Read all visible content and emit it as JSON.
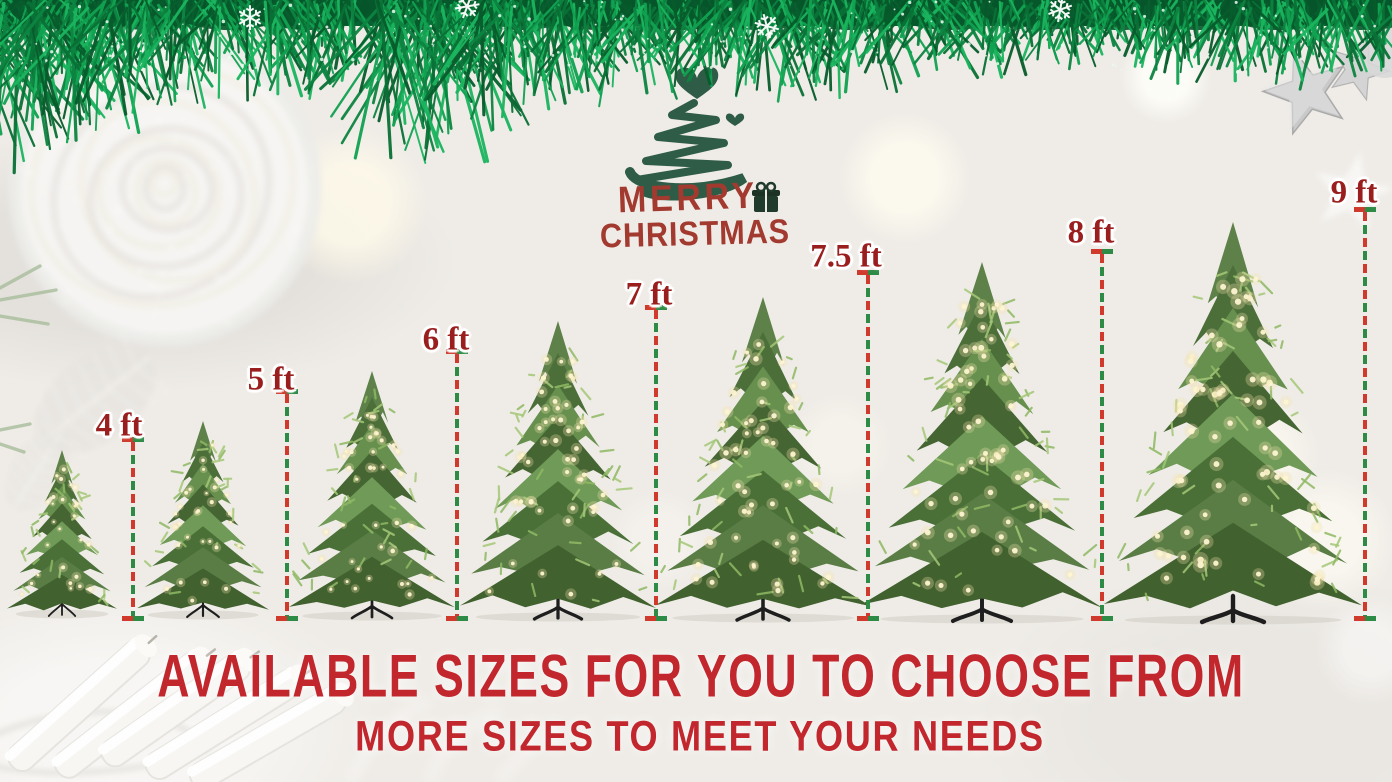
{
  "logo": {
    "title_line1": "MERRY",
    "title_line2": "CHRISTMAS"
  },
  "sizes": [
    {
      "label": "4 ft",
      "feet": 4
    },
    {
      "label": "5 ft",
      "feet": 5
    },
    {
      "label": "6 ft",
      "feet": 6
    },
    {
      "label": "7 ft",
      "feet": 7
    },
    {
      "label": "7.5 ft",
      "feet": 7.5
    },
    {
      "label": "8 ft",
      "feet": 8
    },
    {
      "label": "9 ft",
      "feet": 9
    }
  ],
  "headline": {
    "line1": "AVAILABLE SIZES FOR YOU TO CHOOSE FROM",
    "line2": "MORE SIZES TO MEET YOUR NEEDS"
  },
  "colors": {
    "headline_red": "#c1272d",
    "label_red": "#9a1e1e",
    "dash_red": "#cf３a2c",
    "dash_green": "#2e8b46",
    "logo_red": "#a23a30",
    "logo_green": "#2f5c47",
    "garland_green": "#0d8441"
  },
  "icons": {
    "snowflake": "❄",
    "heart": "♥",
    "star": "★",
    "gift": "🎁"
  },
  "decorations": [
    "pine-garland",
    "white-rose",
    "leaf-skeleton",
    "silver-stars",
    "white-candles",
    "snowflakes",
    "bokeh-lights"
  ]
}
